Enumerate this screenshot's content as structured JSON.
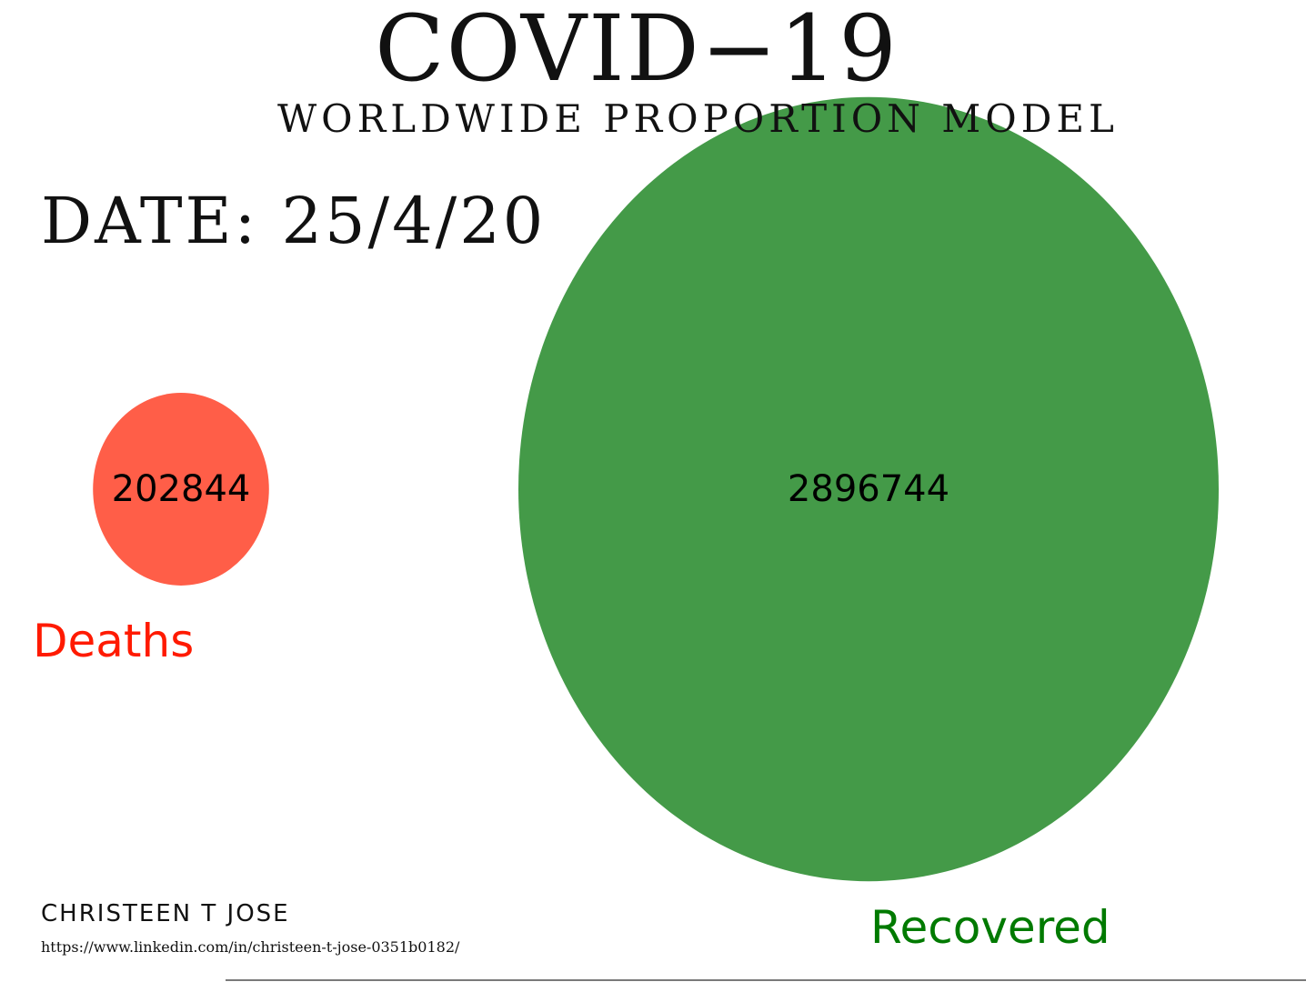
{
  "title": "COVID−19",
  "subtitle": "WORLDWIDE PROPORTION MODEL",
  "date_label": "DATE: 25/4/20",
  "author": {
    "name": "CHRISTEEN T JOSE",
    "link": "https://www.linkedin.com/in/christeen-t-jose-0351b0182/"
  },
  "colors": {
    "deaths": "#ff5e48",
    "recovered": "#449a48",
    "deaths_label": "#ff1a00",
    "recovered_label": "#007a00"
  },
  "chart_data": {
    "type": "bubble",
    "title": "COVID−19",
    "subtitle": "WORLDWIDE PROPORTION MODEL",
    "series": [
      {
        "name": "Deaths",
        "value": 202844,
        "color": "#ff5e48",
        "label_color": "#ff1a00"
      },
      {
        "name": "Recovered",
        "value": 2896744,
        "color": "#449a48",
        "label_color": "#007a00"
      }
    ]
  }
}
